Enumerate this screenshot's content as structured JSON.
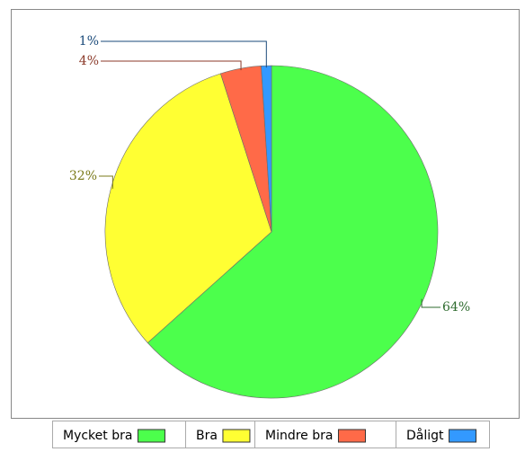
{
  "chart_data": {
    "type": "pie",
    "categories": [
      "Mycket bra",
      "Bra",
      "Mindre bra",
      "Dåligt"
    ],
    "values": [
      64,
      32,
      4,
      1
    ],
    "value_labels": [
      "64%",
      "32%",
      "4%",
      "1%"
    ],
    "colors": [
      "#4cff4c",
      "#ffff33",
      "#ff6a48",
      "#3399ff"
    ],
    "legend": "bottom"
  }
}
